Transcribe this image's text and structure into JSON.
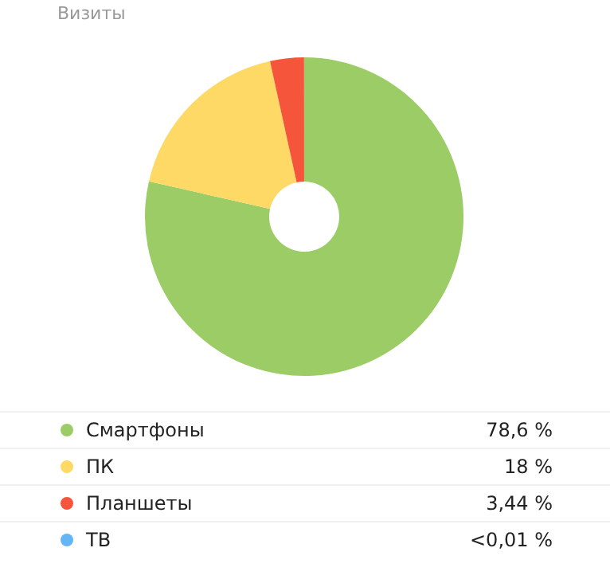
{
  "chart_data": {
    "type": "donut",
    "title": "Визиты",
    "categories": [
      "Смартфоны",
      "ПК",
      "Планшеты",
      "ТВ"
    ],
    "values": [
      78.6,
      18,
      3.44,
      0.01
    ],
    "value_labels": [
      "78,6 %",
      "18 %",
      "3,44 %",
      "<0,01 %"
    ],
    "colors": [
      "#9ccc65",
      "#ffd966",
      "#f5553a",
      "#64b5f6"
    ],
    "legend": "bottom"
  }
}
